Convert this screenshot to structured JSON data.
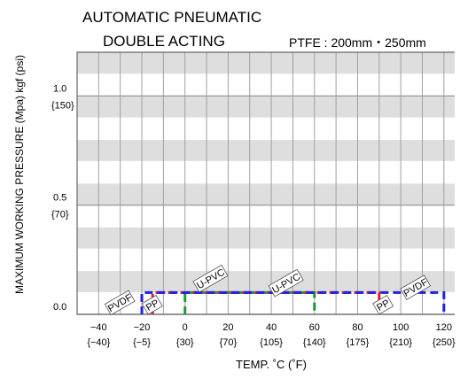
{
  "chart_data": {
    "type": "line",
    "title_line1": "AUTOMATIC  PNEUMATIC",
    "title_line2": "DOUBLE ACTING",
    "spec": "PTFE : 200mm・250mm",
    "ylabel": "MAXIMUM WORKING PRESSURE (Mpa) kgf (psi)",
    "xlabel": "TEMP. ˚C (˚F)",
    "xlim": [
      -50,
      125
    ],
    "ylim": [
      0,
      1.2
    ],
    "x_ticks": [
      {
        "value": -40,
        "label": "−40",
        "f_label": "{−40}"
      },
      {
        "value": -20,
        "label": "−20",
        "f_label": "{−5}"
      },
      {
        "value": 0,
        "label": "0",
        "f_label": "{30}"
      },
      {
        "value": 20,
        "label": "20",
        "f_label": "{70}"
      },
      {
        "value": 40,
        "label": "40",
        "f_label": "{105}"
      },
      {
        "value": 60,
        "label": "60",
        "f_label": "{140}"
      },
      {
        "value": 80,
        "label": "80",
        "f_label": "{175}"
      },
      {
        "value": 100,
        "label": "100",
        "f_label": "{210}"
      },
      {
        "value": 120,
        "label": "120",
        "f_label": "{250}"
      }
    ],
    "y_ticks": [
      {
        "value": 1.0,
        "label": "1.0",
        "psi_label": "{150}"
      },
      {
        "value": 0.5,
        "label": "0.5",
        "psi_label": "{70}"
      },
      {
        "value": 0.0,
        "label": "0.0",
        "psi_label": ""
      }
    ],
    "series": [
      {
        "name": "U-PVC",
        "color": "#1a9a3a",
        "points": [
          [
            0,
            0
          ],
          [
            0,
            0.1
          ],
          [
            60,
            0.1
          ],
          [
            60,
            0
          ]
        ]
      },
      {
        "name": "PP",
        "color": "#e02020",
        "points": [
          [
            -15,
            0
          ],
          [
            -15,
            0.1
          ],
          [
            90,
            0.1
          ],
          [
            90,
            0
          ]
        ]
      },
      {
        "name": "PVDF",
        "color": "#2020e0",
        "points": [
          [
            -20,
            0
          ],
          [
            -20,
            0.1
          ],
          [
            120,
            0.1
          ],
          [
            120,
            0
          ]
        ]
      }
    ],
    "labels": [
      {
        "text": "PVDF",
        "x": -30,
        "y": 0.05
      },
      {
        "text": "PP",
        "x": -15,
        "y": 0.04
      },
      {
        "text": "U-PVC",
        "x": 12,
        "y": 0.16
      },
      {
        "text": "U-PVC",
        "x": 47,
        "y": 0.14
      },
      {
        "text": "PP",
        "x": 92,
        "y": 0.04
      },
      {
        "text": "PVDF",
        "x": 107,
        "y": 0.12
      }
    ]
  }
}
